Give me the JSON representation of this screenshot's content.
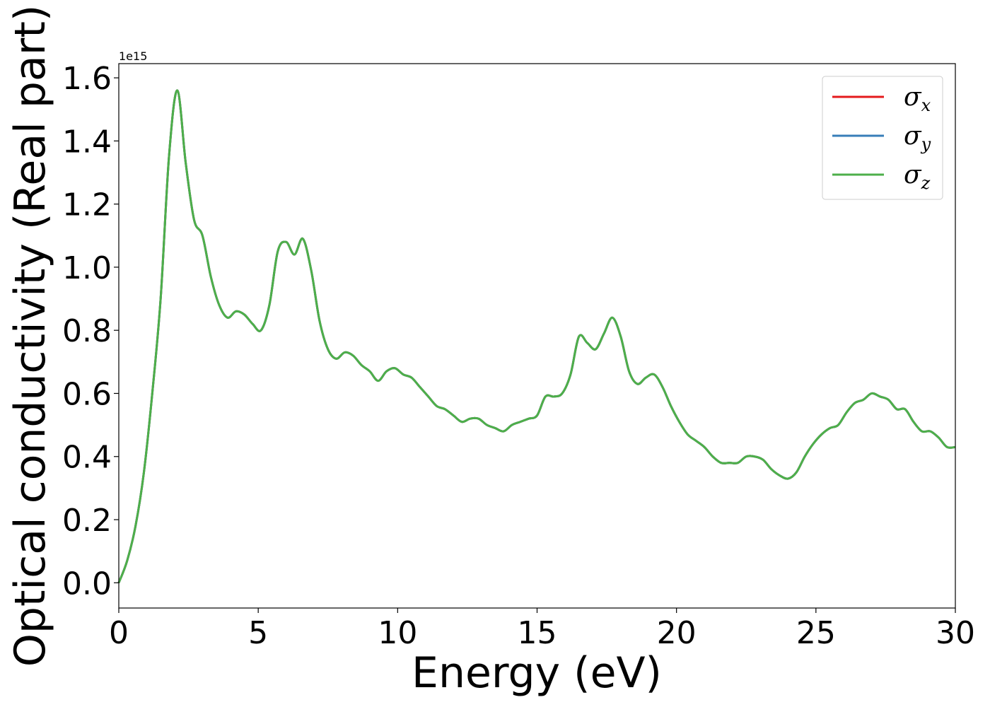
{
  "chart_data": {
    "type": "line",
    "title": "",
    "xlabel": "Energy (eV)",
    "ylabel": "Optical conductivity (Real part)",
    "y_offset_text": "1e15",
    "y_multiplier": 1000000000000000.0,
    "xlim": [
      0,
      30
    ],
    "ylim": [
      -0.08,
      1.645
    ],
    "x_ticks": [
      0,
      5,
      10,
      15,
      20,
      25,
      30
    ],
    "x_tick_labels": [
      "0",
      "5",
      "10",
      "15",
      "20",
      "25",
      "30"
    ],
    "y_ticks": [
      0.0,
      0.2,
      0.4,
      0.6,
      0.8,
      1.0,
      1.2,
      1.4,
      1.6
    ],
    "y_tick_labels": [
      "0.0",
      "0.2",
      "0.4",
      "0.6",
      "0.8",
      "1.0",
      "1.2",
      "1.4",
      "1.6"
    ],
    "grid": false,
    "legend_position": "top-right",
    "x": [
      0,
      0.3,
      0.6,
      0.9,
      1.2,
      1.5,
      1.8,
      2.1,
      2.4,
      2.7,
      3.0,
      3.3,
      3.6,
      3.9,
      4.2,
      4.5,
      4.8,
      5.1,
      5.4,
      5.7,
      6.0,
      6.3,
      6.6,
      6.9,
      7.2,
      7.5,
      7.8,
      8.1,
      8.4,
      8.7,
      9.0,
      9.3,
      9.6,
      9.9,
      10.2,
      10.5,
      10.8,
      11.1,
      11.4,
      11.7,
      12.0,
      12.3,
      12.6,
      12.9,
      13.2,
      13.5,
      13.8,
      14.1,
      14.4,
      14.7,
      15.0,
      15.3,
      15.6,
      15.9,
      16.2,
      16.5,
      16.8,
      17.1,
      17.4,
      17.7,
      18.0,
      18.3,
      18.6,
      18.9,
      19.2,
      19.5,
      19.8,
      20.1,
      20.4,
      20.7,
      21.0,
      21.3,
      21.6,
      21.9,
      22.2,
      22.5,
      22.8,
      23.1,
      23.4,
      23.7,
      24.0,
      24.3,
      24.6,
      24.9,
      25.2,
      25.5,
      25.8,
      26.1,
      26.4,
      26.7,
      27.0,
      27.3,
      27.6,
      27.9,
      28.2,
      28.5,
      28.8,
      29.1,
      29.4,
      29.7,
      30.0
    ],
    "series": [
      {
        "name": "σx",
        "symbol": "σ",
        "subscript": "x",
        "color": "#e41a1c",
        "values": [
          0.0,
          0.07,
          0.18,
          0.35,
          0.6,
          0.9,
          1.35,
          1.56,
          1.33,
          1.15,
          1.1,
          0.97,
          0.88,
          0.84,
          0.86,
          0.85,
          0.82,
          0.8,
          0.88,
          1.05,
          1.08,
          1.04,
          1.09,
          0.99,
          0.83,
          0.74,
          0.71,
          0.73,
          0.72,
          0.69,
          0.67,
          0.64,
          0.67,
          0.68,
          0.66,
          0.65,
          0.62,
          0.59,
          0.56,
          0.55,
          0.53,
          0.51,
          0.52,
          0.52,
          0.5,
          0.49,
          0.48,
          0.5,
          0.51,
          0.52,
          0.53,
          0.59,
          0.59,
          0.6,
          0.66,
          0.78,
          0.76,
          0.74,
          0.79,
          0.84,
          0.78,
          0.67,
          0.63,
          0.65,
          0.66,
          0.62,
          0.56,
          0.51,
          0.47,
          0.45,
          0.43,
          0.4,
          0.38,
          0.38,
          0.38,
          0.4,
          0.4,
          0.39,
          0.36,
          0.34,
          0.33,
          0.35,
          0.4,
          0.44,
          0.47,
          0.49,
          0.5,
          0.54,
          0.57,
          0.58,
          0.6,
          0.59,
          0.58,
          0.55,
          0.55,
          0.51,
          0.48,
          0.48,
          0.46,
          0.43,
          0.43
        ]
      },
      {
        "name": "σy",
        "symbol": "σ",
        "subscript": "y",
        "color": "#377eb8",
        "values": [
          0.0,
          0.07,
          0.18,
          0.35,
          0.6,
          0.9,
          1.35,
          1.56,
          1.33,
          1.15,
          1.1,
          0.97,
          0.88,
          0.84,
          0.86,
          0.85,
          0.82,
          0.8,
          0.88,
          1.05,
          1.08,
          1.04,
          1.09,
          0.99,
          0.83,
          0.74,
          0.71,
          0.73,
          0.72,
          0.69,
          0.67,
          0.64,
          0.67,
          0.68,
          0.66,
          0.65,
          0.62,
          0.59,
          0.56,
          0.55,
          0.53,
          0.51,
          0.52,
          0.52,
          0.5,
          0.49,
          0.48,
          0.5,
          0.51,
          0.52,
          0.53,
          0.59,
          0.59,
          0.6,
          0.66,
          0.78,
          0.76,
          0.74,
          0.79,
          0.84,
          0.78,
          0.67,
          0.63,
          0.65,
          0.66,
          0.62,
          0.56,
          0.51,
          0.47,
          0.45,
          0.43,
          0.4,
          0.38,
          0.38,
          0.38,
          0.4,
          0.4,
          0.39,
          0.36,
          0.34,
          0.33,
          0.35,
          0.4,
          0.44,
          0.47,
          0.49,
          0.5,
          0.54,
          0.57,
          0.58,
          0.6,
          0.59,
          0.58,
          0.55,
          0.55,
          0.51,
          0.48,
          0.48,
          0.46,
          0.43,
          0.43
        ]
      },
      {
        "name": "σz",
        "symbol": "σ",
        "subscript": "z",
        "color": "#4daf4a",
        "values": [
          0.0,
          0.07,
          0.18,
          0.35,
          0.6,
          0.9,
          1.35,
          1.56,
          1.33,
          1.15,
          1.1,
          0.97,
          0.88,
          0.84,
          0.86,
          0.85,
          0.82,
          0.8,
          0.88,
          1.05,
          1.08,
          1.04,
          1.09,
          0.99,
          0.83,
          0.74,
          0.71,
          0.73,
          0.72,
          0.69,
          0.67,
          0.64,
          0.67,
          0.68,
          0.66,
          0.65,
          0.62,
          0.59,
          0.56,
          0.55,
          0.53,
          0.51,
          0.52,
          0.52,
          0.5,
          0.49,
          0.48,
          0.5,
          0.51,
          0.52,
          0.53,
          0.59,
          0.59,
          0.6,
          0.66,
          0.78,
          0.76,
          0.74,
          0.79,
          0.84,
          0.78,
          0.67,
          0.63,
          0.65,
          0.66,
          0.62,
          0.56,
          0.51,
          0.47,
          0.45,
          0.43,
          0.4,
          0.38,
          0.38,
          0.38,
          0.4,
          0.4,
          0.39,
          0.36,
          0.34,
          0.33,
          0.35,
          0.4,
          0.44,
          0.47,
          0.49,
          0.5,
          0.54,
          0.57,
          0.58,
          0.6,
          0.59,
          0.58,
          0.55,
          0.55,
          0.51,
          0.48,
          0.48,
          0.46,
          0.43,
          0.43
        ]
      }
    ]
  }
}
